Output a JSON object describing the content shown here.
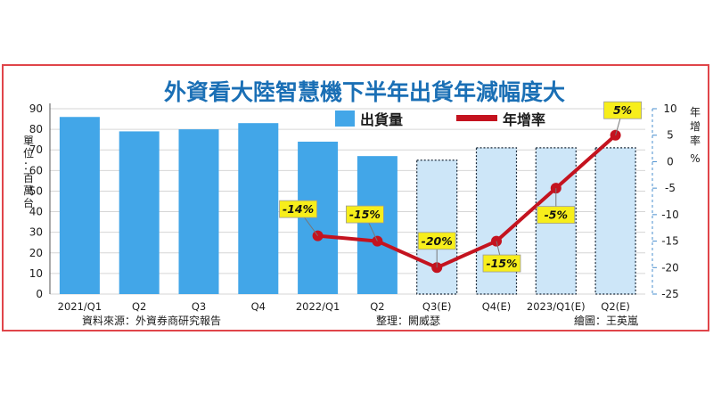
{
  "chart_data": {
    "type": "bar",
    "title": "外資看大陸智慧機下半年出貨年減幅度大",
    "categories": [
      "2021/Q1",
      "Q2",
      "Q3",
      "Q4",
      "2022/Q1",
      "Q2",
      "Q3(E)",
      "Q4(E)",
      "2023/Q1(E)",
      "Q2(E)"
    ],
    "estimated_from_index": 6,
    "left_axis": {
      "label": "單位：百萬台",
      "ylim": [
        0,
        90
      ],
      "ticks": [
        0,
        10,
        20,
        30,
        40,
        50,
        60,
        70,
        80,
        90
      ]
    },
    "right_axis": {
      "label": "年增率 %",
      "unit": "%",
      "ylim": [
        -25,
        10
      ],
      "ticks": [
        10,
        5,
        0,
        -5,
        -10,
        -15,
        -20,
        -25
      ]
    },
    "series": [
      {
        "name": "出貨量",
        "type": "bar",
        "axis": "left",
        "values": [
          86,
          79,
          80,
          83,
          74,
          67,
          65,
          71,
          71,
          71
        ]
      },
      {
        "name": "年增率",
        "type": "line",
        "axis": "right",
        "values": [
          null,
          null,
          null,
          null,
          -14,
          -15,
          -20,
          -15,
          -5,
          5
        ],
        "data_labels": [
          null,
          null,
          null,
          null,
          "-14%",
          "-15%",
          "-20%",
          "-15%",
          "-5%",
          "5%"
        ]
      }
    ],
    "legend_position": "top-center",
    "colors": {
      "bar": "#42a6e8",
      "bar_estimated_fill": "#cde6f8",
      "bar_estimated_border": "#1b2a3a",
      "line": "#c4131f",
      "label_bg": "#f7ee1b",
      "title": "#1a6fb5",
      "frame": "#e0454a"
    },
    "source": "資料來源：外資券商研究報告",
    "compiled_by": "整理：闕威瑟",
    "drawn_by": "繪圖：王英嵐"
  }
}
